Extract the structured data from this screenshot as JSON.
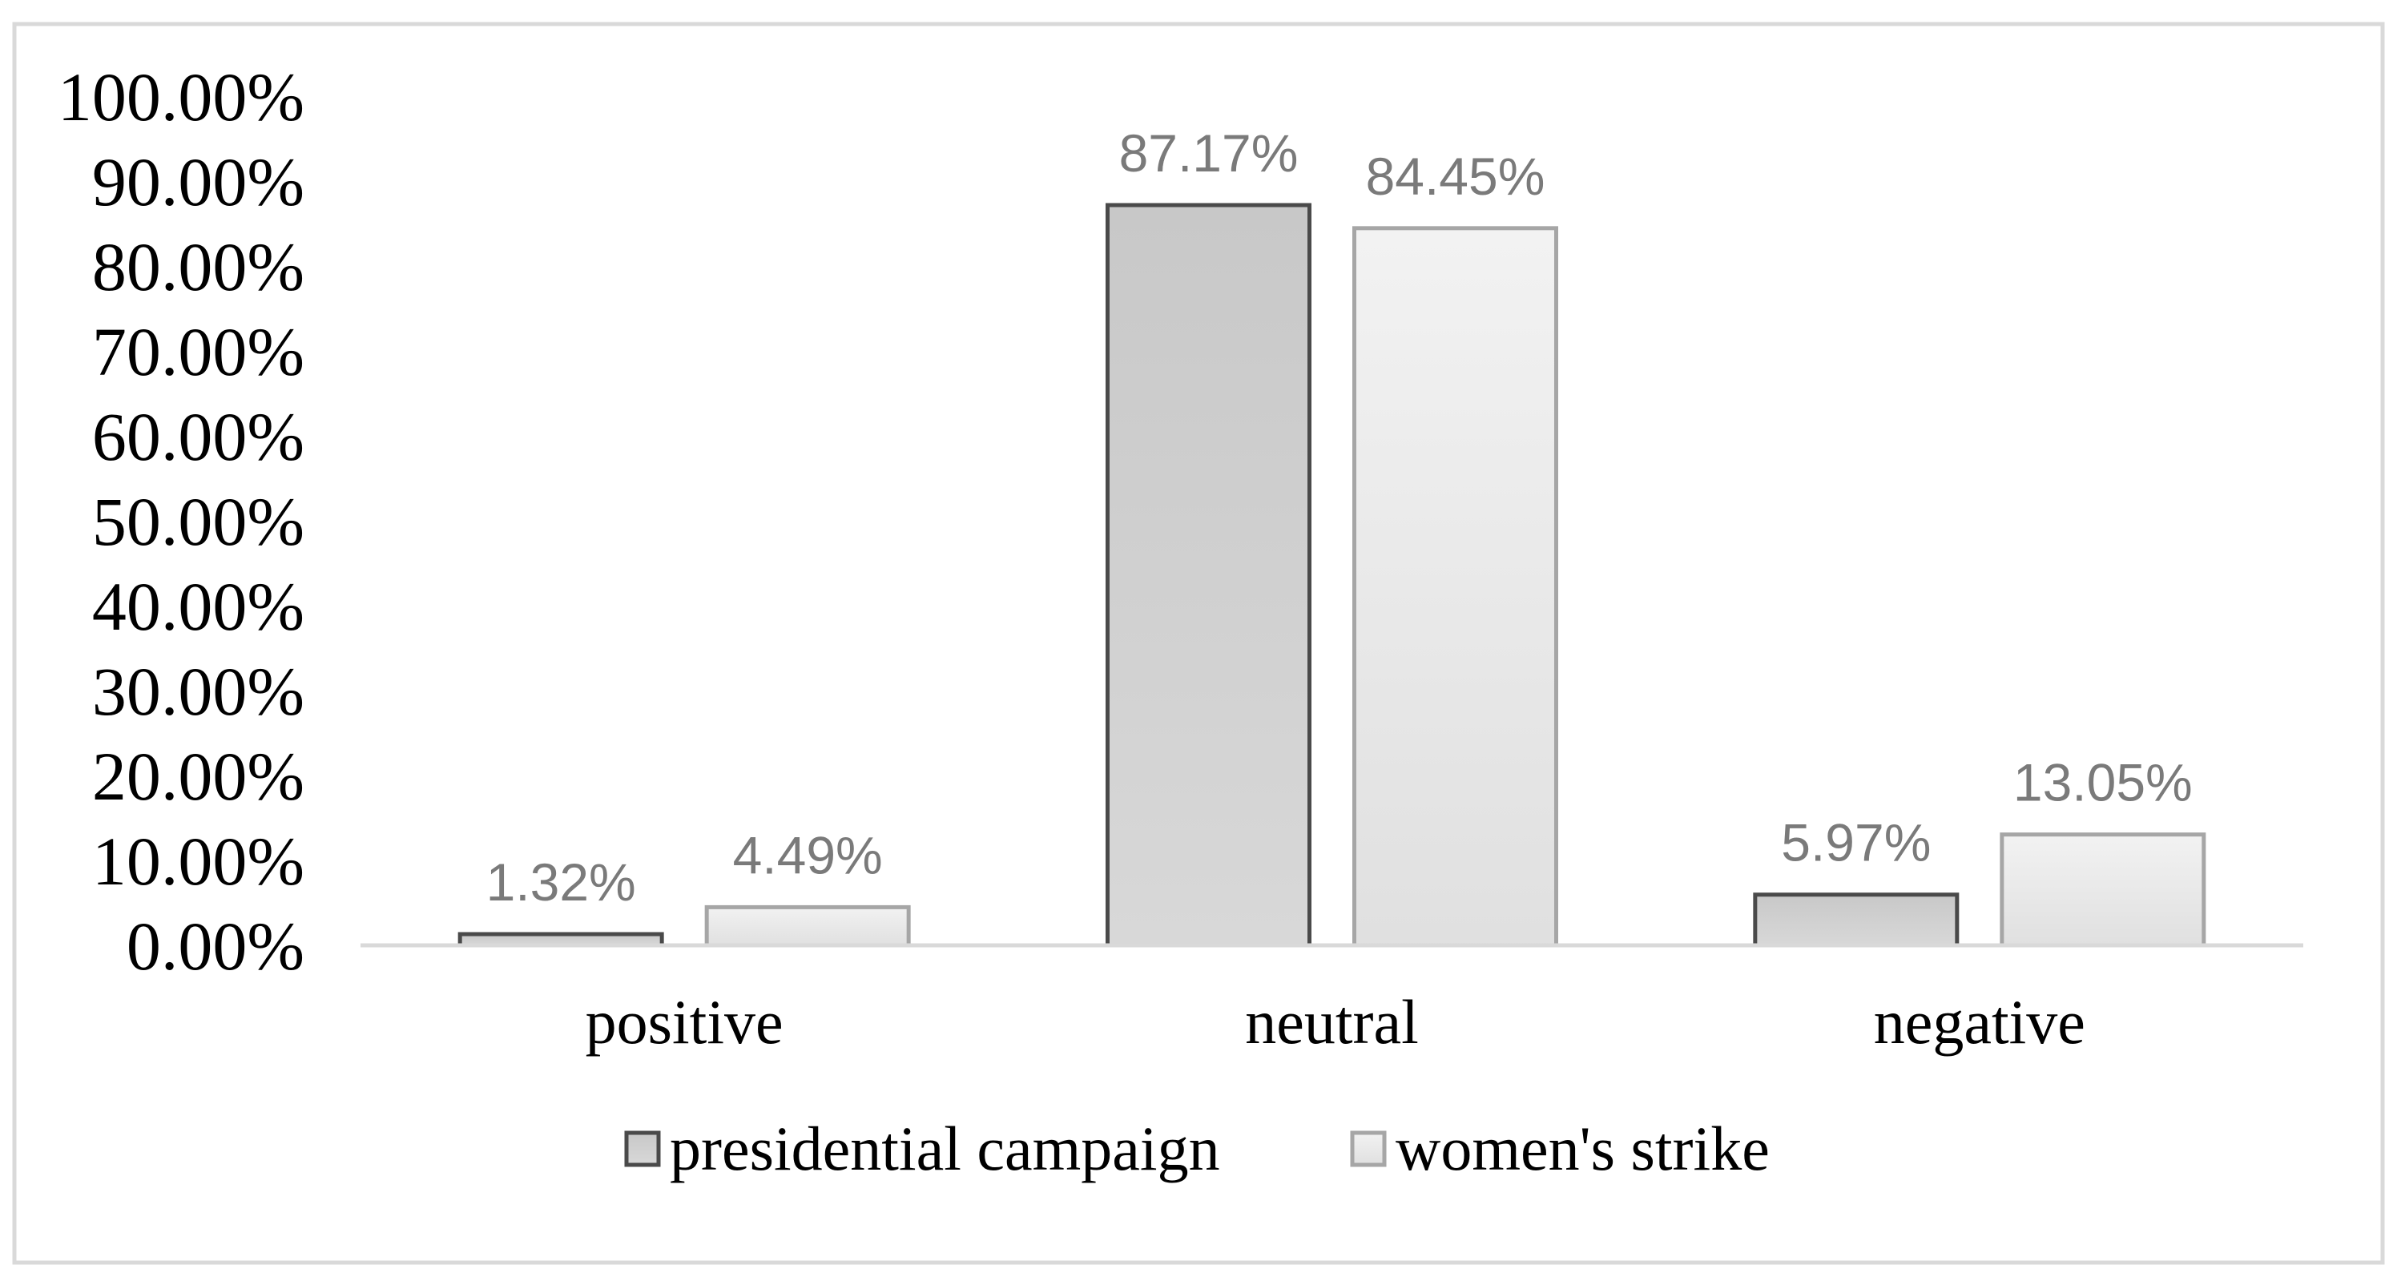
{
  "chart_data": {
    "type": "bar",
    "categories": [
      "positive",
      "neutral",
      "negative"
    ],
    "series": [
      {
        "name": "presidential campaign",
        "values": [
          1.32,
          87.17,
          5.97
        ],
        "labels": [
          "1.32%",
          "87.17%",
          "5.97%"
        ],
        "fill_top": "#c8c8c8",
        "fill_bottom": "#d8d8d8",
        "stroke": "#4a4a4a"
      },
      {
        "name": "women's strike",
        "values": [
          4.49,
          84.45,
          13.05
        ],
        "labels": [
          "4.49%",
          "84.45%",
          "13.05%"
        ],
        "fill_top": "#f2f2f2",
        "fill_bottom": "#e0e0e0",
        "stroke": "#a6a6a6"
      }
    ],
    "yticks": [
      "0.00%",
      "10.00%",
      "20.00%",
      "30.00%",
      "40.00%",
      "50.00%",
      "60.00%",
      "70.00%",
      "80.00%",
      "90.00%",
      "100.00%"
    ],
    "ylim": [
      0,
      100
    ],
    "grid": false,
    "legend_position": "bottom",
    "axis_color": "#d9d9d9",
    "border_color": "#d9d9d9"
  }
}
